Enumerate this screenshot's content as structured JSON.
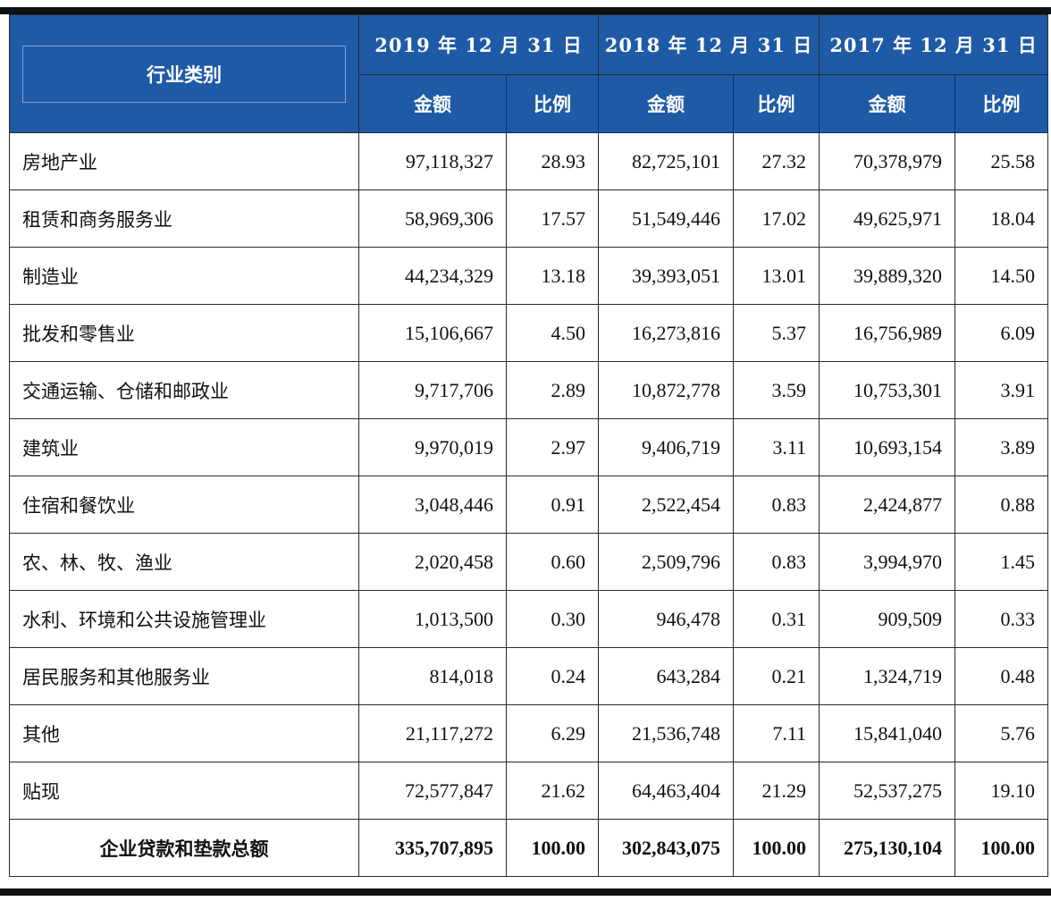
{
  "header": {
    "category": "行业类别",
    "years": [
      "2019 年 12 月 31 日",
      "2018 年 12 月 31 日",
      "2017 年 12 月 31 日"
    ],
    "amount": "金额",
    "ratio": "比例"
  },
  "rows": [
    {
      "label": "房地产业",
      "v": [
        "97,118,327",
        "28.93",
        "82,725,101",
        "27.32",
        "70,378,979",
        "25.58"
      ]
    },
    {
      "label": "租赁和商务服务业",
      "v": [
        "58,969,306",
        "17.57",
        "51,549,446",
        "17.02",
        "49,625,971",
        "18.04"
      ]
    },
    {
      "label": "制造业",
      "v": [
        "44,234,329",
        "13.18",
        "39,393,051",
        "13.01",
        "39,889,320",
        "14.50"
      ]
    },
    {
      "label": "批发和零售业",
      "v": [
        "15,106,667",
        "4.50",
        "16,273,816",
        "5.37",
        "16,756,989",
        "6.09"
      ]
    },
    {
      "label": "交通运输、仓储和邮政业",
      "v": [
        "9,717,706",
        "2.89",
        "10,872,778",
        "3.59",
        "10,753,301",
        "3.91"
      ]
    },
    {
      "label": "建筑业",
      "v": [
        "9,970,019",
        "2.97",
        "9,406,719",
        "3.11",
        "10,693,154",
        "3.89"
      ]
    },
    {
      "label": "住宿和餐饮业",
      "v": [
        "3,048,446",
        "0.91",
        "2,522,454",
        "0.83",
        "2,424,877",
        "0.88"
      ]
    },
    {
      "label": "农、林、牧、渔业",
      "v": [
        "2,020,458",
        "0.60",
        "2,509,796",
        "0.83",
        "3,994,970",
        "1.45"
      ]
    },
    {
      "label": "水利、环境和公共设施管理业",
      "v": [
        "1,013,500",
        "0.30",
        "946,478",
        "0.31",
        "909,509",
        "0.33"
      ]
    },
    {
      "label": "居民服务和其他服务业",
      "v": [
        "814,018",
        "0.24",
        "643,284",
        "0.21",
        "1,324,719",
        "0.48"
      ]
    },
    {
      "label": "其他",
      "v": [
        "21,117,272",
        "6.29",
        "21,536,748",
        "7.11",
        "15,841,040",
        "5.76"
      ]
    },
    {
      "label": "贴现",
      "v": [
        "72,577,847",
        "21.62",
        "64,463,404",
        "21.29",
        "52,537,275",
        "19.10"
      ]
    }
  ],
  "total": {
    "label": "企业贷款和垫款总额",
    "v": [
      "335,707,895",
      "100.00",
      "302,843,075",
      "100.00",
      "275,130,104",
      "100.00"
    ]
  },
  "colors": {
    "header_bg": "#1f5aa6",
    "header_text": "#ffffff"
  }
}
